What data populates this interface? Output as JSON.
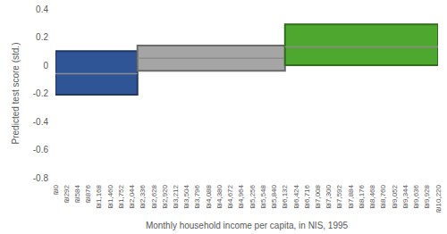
{
  "chart_data": {
    "type": "range_box",
    "x_label": "Monthly household income per capita, in NIS, 1995",
    "y_label": "Predicted test score (std.)",
    "xlim": [
      0,
      10220
    ],
    "xticks": [
      {
        "value": 0,
        "label": "₪0"
      },
      {
        "value": 292,
        "label": "₪292"
      },
      {
        "value": 584,
        "label": "₪584"
      },
      {
        "value": 876,
        "label": "₪876"
      },
      {
        "value": 1168,
        "label": "₪1,168"
      },
      {
        "value": 1460,
        "label": "₪1,460"
      },
      {
        "value": 1752,
        "label": "₪1,752"
      },
      {
        "value": 2044,
        "label": "₪2,044"
      },
      {
        "value": 2336,
        "label": "₪2,336"
      },
      {
        "value": 2628,
        "label": "₪2,628"
      },
      {
        "value": 2920,
        "label": "₪2,920"
      },
      {
        "value": 3212,
        "label": "₪3,212"
      },
      {
        "value": 3504,
        "label": "₪3,504"
      },
      {
        "value": 3796,
        "label": "₪3,796"
      },
      {
        "value": 4088,
        "label": "₪4,088"
      },
      {
        "value": 4380,
        "label": "₪4,380"
      },
      {
        "value": 4672,
        "label": "₪4,672"
      },
      {
        "value": 4964,
        "label": "₪4,964"
      },
      {
        "value": 5256,
        "label": "₪5,256"
      },
      {
        "value": 5548,
        "label": "₪5,548"
      },
      {
        "value": 5840,
        "label": "₪5,840"
      },
      {
        "value": 6132,
        "label": "₪6,132"
      },
      {
        "value": 6424,
        "label": "₪6,424"
      },
      {
        "value": 6716,
        "label": "₪6,716"
      },
      {
        "value": 7008,
        "label": "₪7,008"
      },
      {
        "value": 7300,
        "label": "₪7,300"
      },
      {
        "value": 7592,
        "label": "₪7,592"
      },
      {
        "value": 7884,
        "label": "₪7,884"
      },
      {
        "value": 8176,
        "label": "₪8,176"
      },
      {
        "value": 8468,
        "label": "₪8,468"
      },
      {
        "value": 8760,
        "label": "₪8,760"
      },
      {
        "value": 9052,
        "label": "₪9,052"
      },
      {
        "value": 9344,
        "label": "₪9,344"
      },
      {
        "value": 9636,
        "label": "₪9,636"
      },
      {
        "value": 9928,
        "label": "₪9,928"
      },
      {
        "value": 10220,
        "label": "₪10,220"
      }
    ],
    "ylim": [
      -0.8,
      0.4
    ],
    "yticks": [
      -0.8,
      -0.6,
      -0.4,
      -0.2,
      0,
      0.2,
      0.4
    ],
    "grid": false,
    "boxes": [
      {
        "x": [
          0,
          2190
        ],
        "low": -0.21,
        "mid": -0.06,
        "high": 0.1
      },
      {
        "x": [
          2190,
          6132
        ],
        "low": -0.04,
        "mid": 0.05,
        "high": 0.14
      },
      {
        "x": [
          6132,
          10220
        ],
        "low": 0.0,
        "mid": 0.13,
        "high": 0.29
      }
    ],
    "colors": [
      "#2f5597",
      "#a5a5a5",
      "#4ea72e"
    ]
  }
}
